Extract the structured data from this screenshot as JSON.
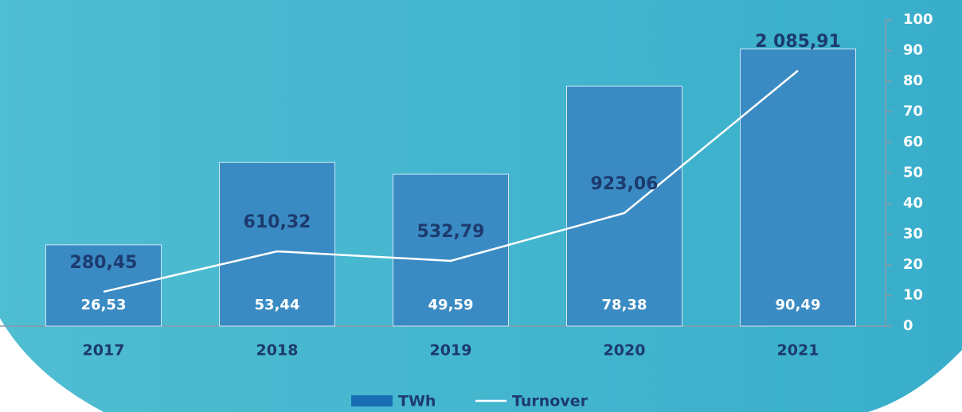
{
  "chart_data": {
    "type": "bar_line",
    "categories": [
      "2017",
      "2018",
      "2019",
      "2020",
      "2021"
    ],
    "series": [
      {
        "name": "TWh",
        "color": "#3a8bc3",
        "values": [
          26.53,
          53.44,
          49.59,
          78.38,
          90.49
        ],
        "value_labels": [
          "26,53",
          "53,44",
          "49,59",
          "78,38",
          "90,49"
        ]
      },
      {
        "name": "Turnover",
        "color": "#ffffff",
        "axis": "y2",
        "values": [
          280.45,
          610.32,
          532.79,
          923.06,
          2085.91
        ],
        "value_labels": [
          "280,45",
          "610,32",
          "532,79",
          "923,06",
          "2 085,91"
        ]
      }
    ],
    "ylim": [
      0,
      100
    ],
    "yticks": [
      0,
      10,
      20,
      30,
      40,
      50,
      60,
      70,
      80,
      90,
      100
    ],
    "y2lim": [
      0,
      2500
    ]
  }
}
